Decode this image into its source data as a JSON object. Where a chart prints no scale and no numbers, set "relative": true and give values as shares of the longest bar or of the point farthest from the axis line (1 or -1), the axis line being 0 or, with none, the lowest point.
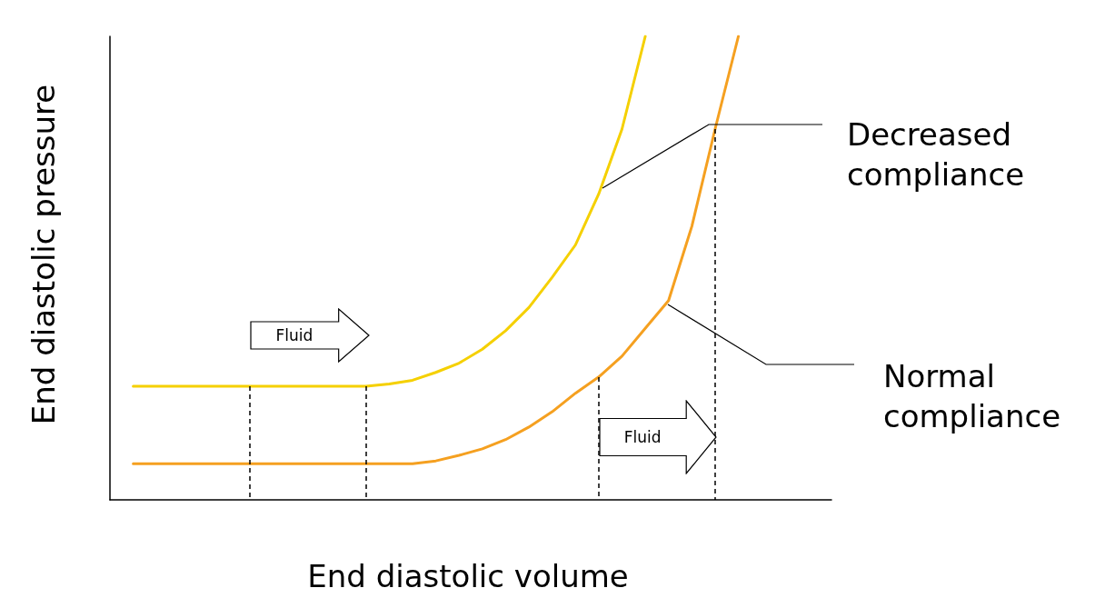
{
  "chart_data": {
    "type": "line",
    "relative": true,
    "xlabel": "End diastolic volume",
    "ylabel": "End diastolic pressure",
    "categories": [
      null,
      null,
      null,
      null,
      null,
      null,
      null,
      null,
      null,
      null,
      null,
      null,
      null,
      null,
      null,
      null,
      null,
      null,
      null,
      null,
      null,
      null,
      null,
      null,
      null,
      null,
      null,
      null,
      null,
      null,
      null,
      null
    ],
    "marker": "none",
    "line_style": "solid",
    "grid": false,
    "series": [
      {
        "color": "#f5d000",
        "values": [
          null,
          0.245,
          0.245,
          0.245,
          0.245,
          0.245,
          0.245,
          0.245,
          0.245,
          0.245,
          0.245,
          0.245,
          0.25,
          0.258,
          0.275,
          0.295,
          0.325,
          0.365,
          0.415,
          0.48,
          0.55,
          0.66,
          0.8,
          1.0,
          null,
          null,
          null,
          null,
          null,
          null,
          null,
          null
        ]
      },
      {
        "color": "#f5a020",
        "values": [
          null,
          0.078,
          0.078,
          0.078,
          0.078,
          0.078,
          0.078,
          0.078,
          0.078,
          0.078,
          0.078,
          0.078,
          0.078,
          0.078,
          0.084,
          0.096,
          0.11,
          0.13,
          0.157,
          0.19,
          0.23,
          0.265,
          0.31,
          0.37,
          0.43,
          0.59,
          0.8,
          1.0,
          null,
          null,
          null,
          null
        ]
      }
    ],
    "annotations": [
      "Fluid",
      "Fluid",
      "Decreased compliance",
      "Normal compliance"
    ]
  }
}
